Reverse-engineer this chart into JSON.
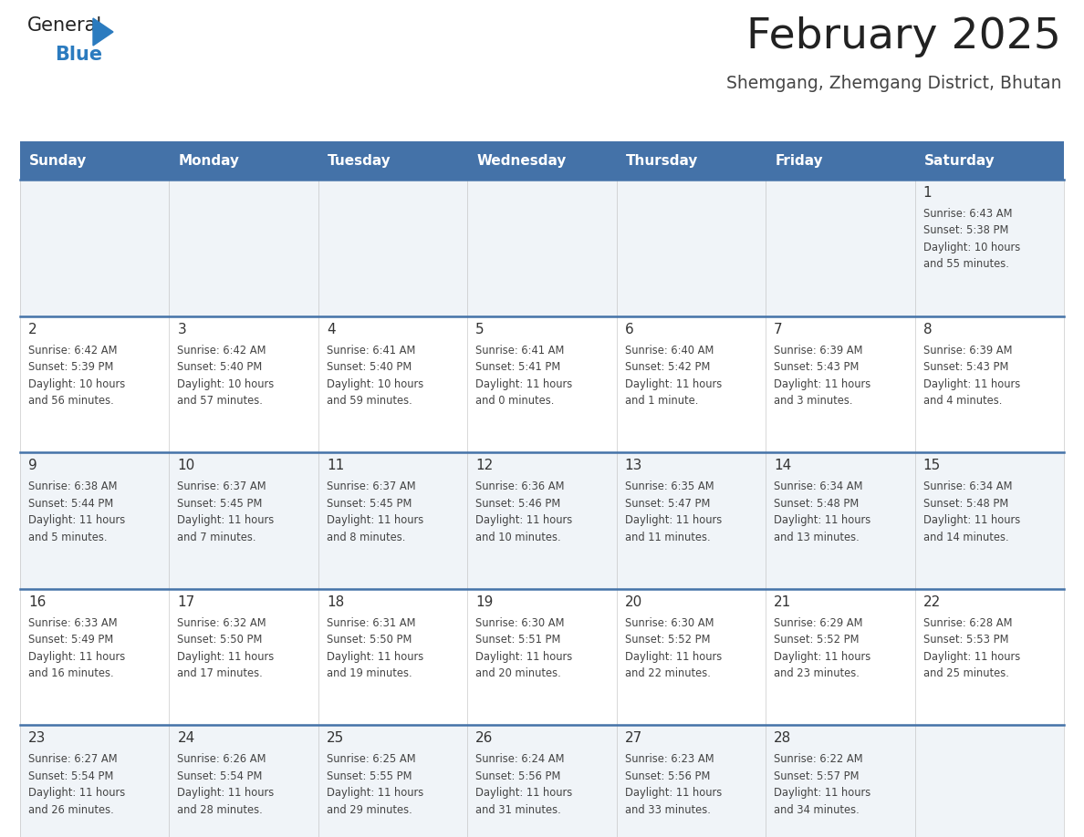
{
  "title": "February 2025",
  "subtitle": "Shemgang, Zhemgang District, Bhutan",
  "days_of_week": [
    "Sunday",
    "Monday",
    "Tuesday",
    "Wednesday",
    "Thursday",
    "Friday",
    "Saturday"
  ],
  "header_bg": "#4472a8",
  "header_text": "#ffffff",
  "row_bg_odd": "#f0f4f8",
  "row_bg_even": "#ffffff",
  "cell_border": "#4472a8",
  "day_number_color": "#333333",
  "cell_text_color": "#444444",
  "calendar": [
    [
      null,
      null,
      null,
      null,
      null,
      null,
      {
        "day": "1",
        "sunrise": "6:43 AM",
        "sunset": "5:38 PM",
        "daylight_h": "10 hours",
        "daylight_m": "and 55 minutes."
      }
    ],
    [
      {
        "day": "2",
        "sunrise": "6:42 AM",
        "sunset": "5:39 PM",
        "daylight_h": "10 hours",
        "daylight_m": "and 56 minutes."
      },
      {
        "day": "3",
        "sunrise": "6:42 AM",
        "sunset": "5:40 PM",
        "daylight_h": "10 hours",
        "daylight_m": "and 57 minutes."
      },
      {
        "day": "4",
        "sunrise": "6:41 AM",
        "sunset": "5:40 PM",
        "daylight_h": "10 hours",
        "daylight_m": "and 59 minutes."
      },
      {
        "day": "5",
        "sunrise": "6:41 AM",
        "sunset": "5:41 PM",
        "daylight_h": "11 hours",
        "daylight_m": "and 0 minutes."
      },
      {
        "day": "6",
        "sunrise": "6:40 AM",
        "sunset": "5:42 PM",
        "daylight_h": "11 hours",
        "daylight_m": "and 1 minute."
      },
      {
        "day": "7",
        "sunrise": "6:39 AM",
        "sunset": "5:43 PM",
        "daylight_h": "11 hours",
        "daylight_m": "and 3 minutes."
      },
      {
        "day": "8",
        "sunrise": "6:39 AM",
        "sunset": "5:43 PM",
        "daylight_h": "11 hours",
        "daylight_m": "and 4 minutes."
      }
    ],
    [
      {
        "day": "9",
        "sunrise": "6:38 AM",
        "sunset": "5:44 PM",
        "daylight_h": "11 hours",
        "daylight_m": "and 5 minutes."
      },
      {
        "day": "10",
        "sunrise": "6:37 AM",
        "sunset": "5:45 PM",
        "daylight_h": "11 hours",
        "daylight_m": "and 7 minutes."
      },
      {
        "day": "11",
        "sunrise": "6:37 AM",
        "sunset": "5:45 PM",
        "daylight_h": "11 hours",
        "daylight_m": "and 8 minutes."
      },
      {
        "day": "12",
        "sunrise": "6:36 AM",
        "sunset": "5:46 PM",
        "daylight_h": "11 hours",
        "daylight_m": "and 10 minutes."
      },
      {
        "day": "13",
        "sunrise": "6:35 AM",
        "sunset": "5:47 PM",
        "daylight_h": "11 hours",
        "daylight_m": "and 11 minutes."
      },
      {
        "day": "14",
        "sunrise": "6:34 AM",
        "sunset": "5:48 PM",
        "daylight_h": "11 hours",
        "daylight_m": "and 13 minutes."
      },
      {
        "day": "15",
        "sunrise": "6:34 AM",
        "sunset": "5:48 PM",
        "daylight_h": "11 hours",
        "daylight_m": "and 14 minutes."
      }
    ],
    [
      {
        "day": "16",
        "sunrise": "6:33 AM",
        "sunset": "5:49 PM",
        "daylight_h": "11 hours",
        "daylight_m": "and 16 minutes."
      },
      {
        "day": "17",
        "sunrise": "6:32 AM",
        "sunset": "5:50 PM",
        "daylight_h": "11 hours",
        "daylight_m": "and 17 minutes."
      },
      {
        "day": "18",
        "sunrise": "6:31 AM",
        "sunset": "5:50 PM",
        "daylight_h": "11 hours",
        "daylight_m": "and 19 minutes."
      },
      {
        "day": "19",
        "sunrise": "6:30 AM",
        "sunset": "5:51 PM",
        "daylight_h": "11 hours",
        "daylight_m": "and 20 minutes."
      },
      {
        "day": "20",
        "sunrise": "6:30 AM",
        "sunset": "5:52 PM",
        "daylight_h": "11 hours",
        "daylight_m": "and 22 minutes."
      },
      {
        "day": "21",
        "sunrise": "6:29 AM",
        "sunset": "5:52 PM",
        "daylight_h": "11 hours",
        "daylight_m": "and 23 minutes."
      },
      {
        "day": "22",
        "sunrise": "6:28 AM",
        "sunset": "5:53 PM",
        "daylight_h": "11 hours",
        "daylight_m": "and 25 minutes."
      }
    ],
    [
      {
        "day": "23",
        "sunrise": "6:27 AM",
        "sunset": "5:54 PM",
        "daylight_h": "11 hours",
        "daylight_m": "and 26 minutes."
      },
      {
        "day": "24",
        "sunrise": "6:26 AM",
        "sunset": "5:54 PM",
        "daylight_h": "11 hours",
        "daylight_m": "and 28 minutes."
      },
      {
        "day": "25",
        "sunrise": "6:25 AM",
        "sunset": "5:55 PM",
        "daylight_h": "11 hours",
        "daylight_m": "and 29 minutes."
      },
      {
        "day": "26",
        "sunrise": "6:24 AM",
        "sunset": "5:56 PM",
        "daylight_h": "11 hours",
        "daylight_m": "and 31 minutes."
      },
      {
        "day": "27",
        "sunrise": "6:23 AM",
        "sunset": "5:56 PM",
        "daylight_h": "11 hours",
        "daylight_m": "and 33 minutes."
      },
      {
        "day": "28",
        "sunrise": "6:22 AM",
        "sunset": "5:57 PM",
        "daylight_h": "11 hours",
        "daylight_m": "and 34 minutes."
      },
      null
    ]
  ],
  "logo_general_color": "#222222",
  "logo_blue_color": "#2b7bbf",
  "title_color": "#222222",
  "subtitle_color": "#444444"
}
